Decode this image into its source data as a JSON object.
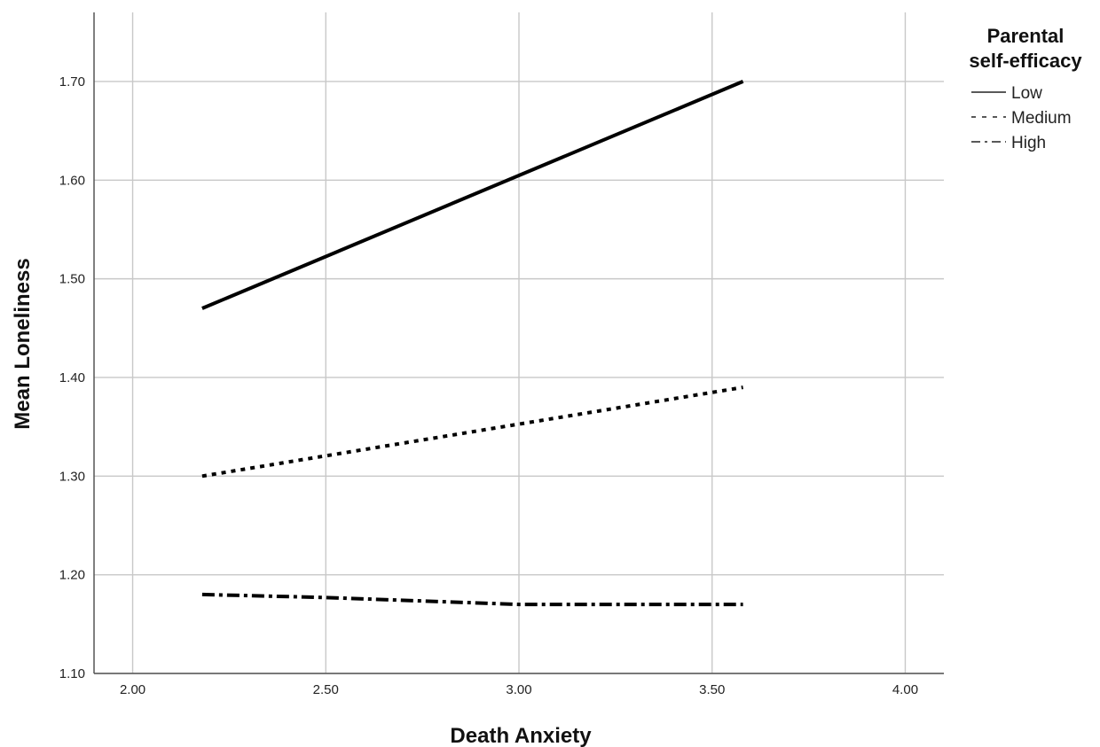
{
  "chart_data": {
    "type": "line",
    "title": "",
    "xlabel": "Death Anxiety",
    "ylabel": "Mean Loneliness",
    "xlim": [
      1.9,
      4.1
    ],
    "ylim": [
      1.1,
      1.77
    ],
    "x_ticks": [
      2.0,
      2.5,
      3.0,
      3.5,
      4.0
    ],
    "x_tick_labels": [
      "2.00",
      "2.50",
      "3.00",
      "3.50",
      "4.00"
    ],
    "y_ticks": [
      1.1,
      1.2,
      1.3,
      1.4,
      1.5,
      1.6,
      1.7
    ],
    "y_tick_labels": [
      "1.10",
      "1.20",
      "1.30",
      "1.40",
      "1.50",
      "1.60",
      "1.70"
    ],
    "grid": true,
    "legend": {
      "title_lines": [
        "Parental",
        "self-efficacy"
      ],
      "placement": "top-right outside plot"
    },
    "series": [
      {
        "name": "Low",
        "style": "solid",
        "color": "#000000",
        "x": [
          2.18,
          3.58
        ],
        "y": [
          1.47,
          1.7
        ]
      },
      {
        "name": "Medium",
        "style": "dotted",
        "color": "#000000",
        "x": [
          2.18,
          3.58
        ],
        "y": [
          1.3,
          1.39
        ]
      },
      {
        "name": "High",
        "style": "dash-dot",
        "color": "#000000",
        "x": [
          2.18,
          2.5,
          3.0,
          3.58
        ],
        "y": [
          1.18,
          1.177,
          1.17,
          1.17
        ]
      }
    ]
  }
}
